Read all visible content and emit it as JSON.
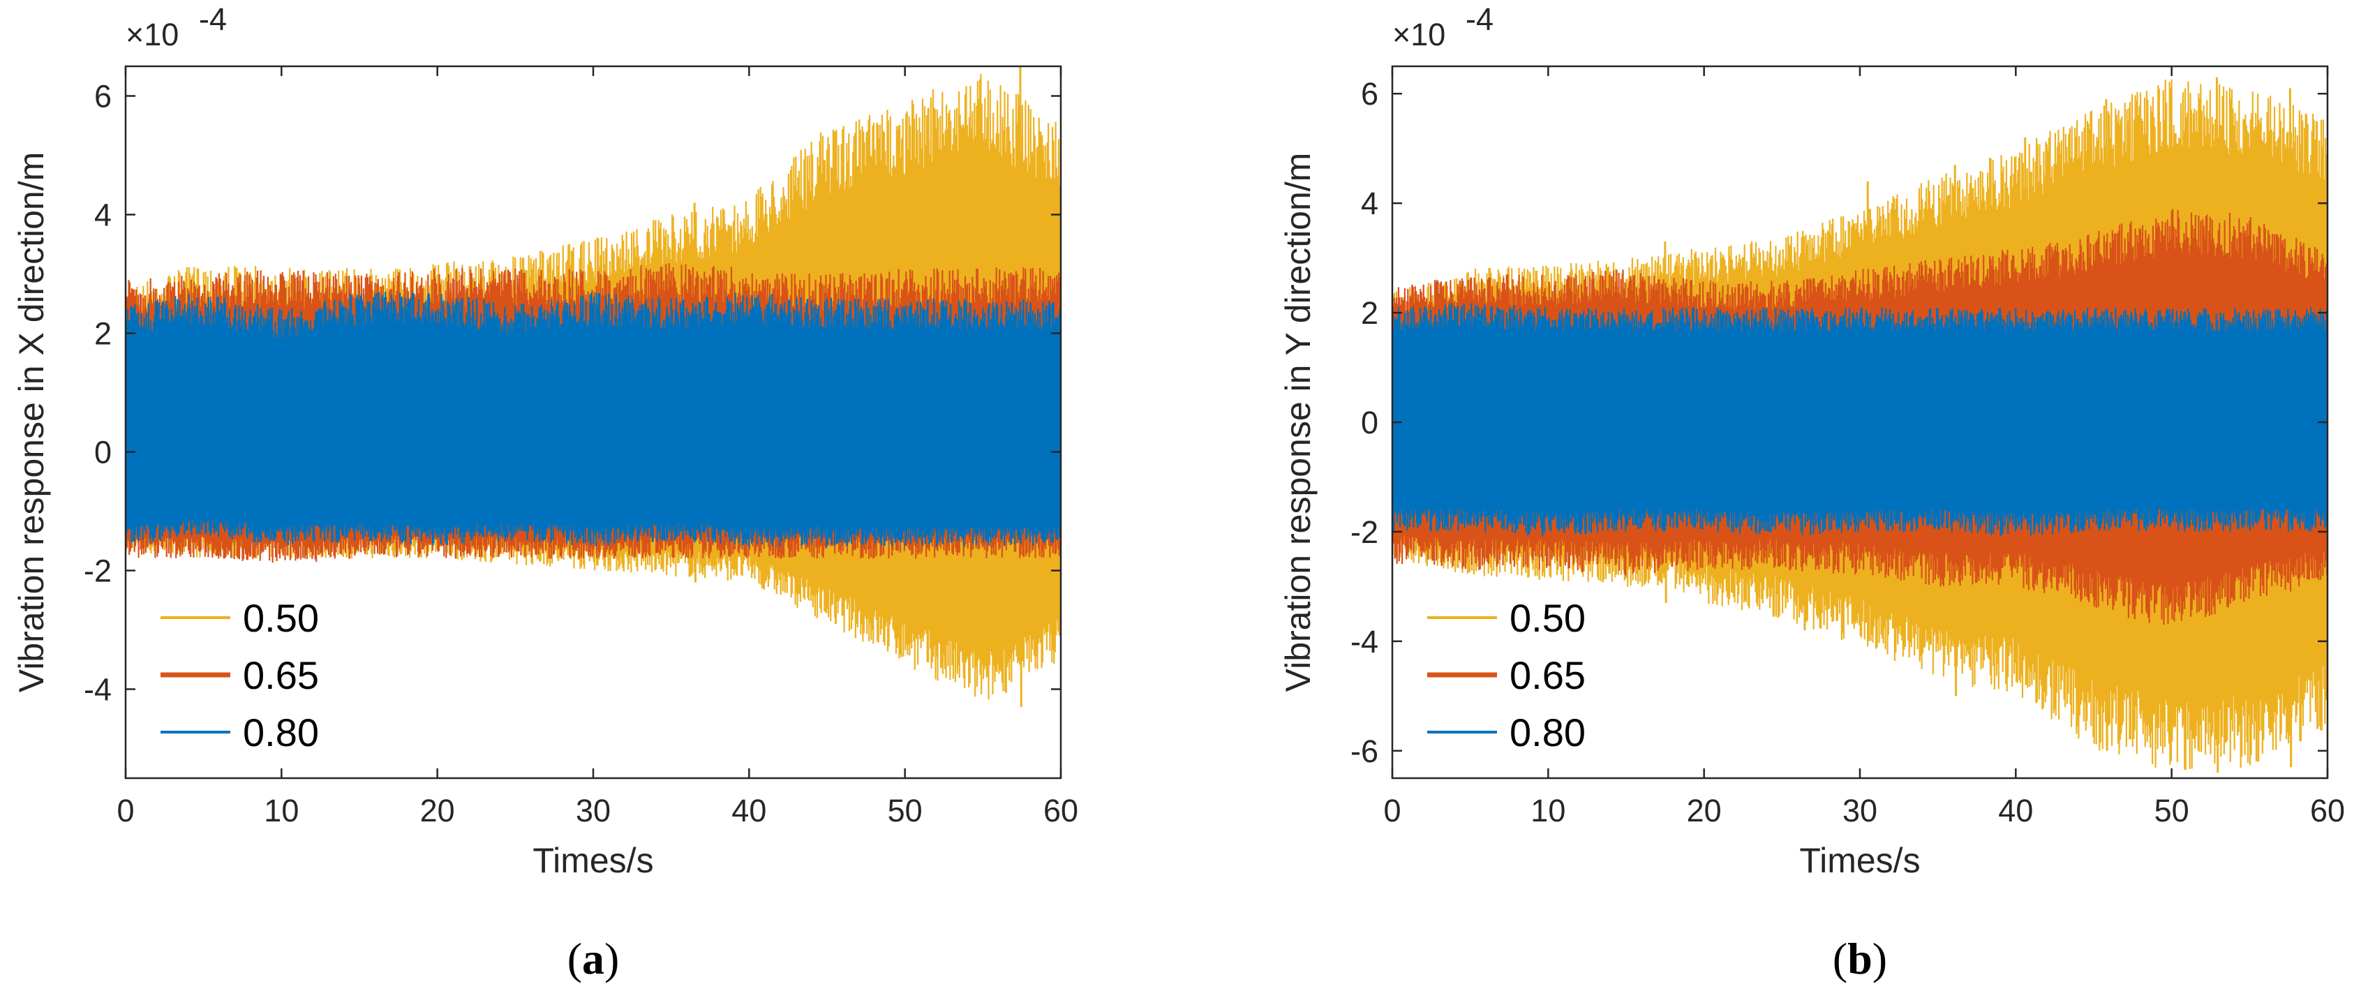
{
  "chart_data": [
    {
      "type": "line",
      "id": "a",
      "panel_label": {
        "open": "(",
        "letter": "a",
        "close": ")"
      },
      "title": "",
      "xlabel": "Times/s",
      "ylabel": "Vibration response in X direction/m",
      "exponent_label": "×10",
      "exponent_power": "-4",
      "xlim": [
        0,
        60
      ],
      "ylim": [
        -5.5,
        6.5
      ],
      "xticks": [
        0,
        10,
        20,
        30,
        40,
        50,
        60
      ],
      "xtick_labels": [
        "0",
        "10",
        "20",
        "30",
        "40",
        "50",
        "60"
      ],
      "yticks": [
        -4,
        -2,
        0,
        2,
        4,
        6
      ],
      "ytick_labels": [
        "-4",
        "-2",
        "0",
        "2",
        "4",
        "6"
      ],
      "grid": false,
      "legend_position": "bottom-left",
      "series": [
        {
          "name": "0.50",
          "color": "#EDB120",
          "envelope_t": [
            0,
            5,
            10,
            15,
            20,
            25,
            30,
            35,
            40,
            45,
            50,
            55,
            60
          ],
          "upper": [
            2.8,
            3.2,
            3.1,
            3.1,
            3.2,
            3.3,
            3.6,
            4.0,
            4.3,
            5.5,
            5.9,
            6.5,
            5.5
          ],
          "lower": [
            -1.7,
            -1.8,
            -1.8,
            -1.8,
            -1.8,
            -1.9,
            -2.0,
            -2.1,
            -2.2,
            -2.9,
            -3.6,
            -4.3,
            -3.5
          ],
          "spikes": [
            [
              36.5,
              4.2,
              -2.2
            ],
            [
              40.8,
              4.3,
              -2.3
            ],
            [
              45.5,
              5.4,
              -2.9
            ],
            [
              51.5,
              5.8,
              -3.0
            ],
            [
              53.4,
              3.9,
              -3.6
            ],
            [
              55.2,
              5.0,
              -3.8
            ],
            [
              57.4,
              6.5,
              -4.3
            ],
            [
              58.7,
              5.4,
              -3.1
            ]
          ]
        },
        {
          "name": "0.65",
          "color": "#D95319",
          "envelope_t": [
            0,
            5,
            10,
            15,
            20,
            25,
            30,
            35,
            40,
            45,
            50,
            55,
            60
          ],
          "upper": [
            2.9,
            3.0,
            3.1,
            3.0,
            3.1,
            3.1,
            3.1,
            3.2,
            3.1,
            3.0,
            3.1,
            3.1,
            3.2
          ],
          "lower": [
            -1.8,
            -1.8,
            -1.9,
            -1.8,
            -1.8,
            -1.8,
            -1.8,
            -1.8,
            -1.8,
            -1.8,
            -1.8,
            -1.8,
            -1.8
          ],
          "spikes": []
        },
        {
          "name": "0.80",
          "color": "#0072BD",
          "envelope_t": [
            0,
            5,
            10,
            15,
            20,
            25,
            30,
            35,
            40,
            45,
            50,
            55,
            60
          ],
          "upper": [
            2.5,
            2.7,
            2.4,
            2.7,
            2.7,
            2.5,
            2.7,
            2.6,
            2.7,
            2.6,
            2.6,
            2.6,
            2.6
          ],
          "lower": [
            -1.6,
            -1.4,
            -1.6,
            -1.5,
            -1.6,
            -1.5,
            -1.6,
            -1.5,
            -1.6,
            -1.6,
            -1.6,
            -1.6,
            -1.6
          ],
          "spikes": []
        }
      ]
    },
    {
      "type": "line",
      "id": "b",
      "panel_label": {
        "open": "(",
        "letter": "b",
        "close": ")"
      },
      "title": "",
      "xlabel": "Times/s",
      "ylabel": "Vibration response in Y direction/m",
      "exponent_label": "×10",
      "exponent_power": "-4",
      "xlim": [
        0,
        60
      ],
      "ylim": [
        -6.5,
        6.5
      ],
      "xticks": [
        0,
        10,
        20,
        30,
        40,
        50,
        60
      ],
      "xtick_labels": [
        "0",
        "10",
        "20",
        "30",
        "40",
        "50",
        "60"
      ],
      "yticks": [
        -6,
        -4,
        -2,
        0,
        2,
        4,
        6
      ],
      "ytick_labels": [
        "-6",
        "-4",
        "-2",
        "0",
        "2",
        "4",
        "6"
      ],
      "grid": false,
      "legend_position": "bottom-left",
      "series": [
        {
          "name": "0.50",
          "color": "#EDB120",
          "envelope_t": [
            0,
            5,
            10,
            15,
            20,
            25,
            30,
            35,
            40,
            45,
            50,
            55,
            60
          ],
          "upper": [
            2.4,
            2.8,
            2.9,
            3.0,
            3.2,
            3.4,
            3.9,
            4.5,
            5.0,
            5.8,
            6.3,
            6.1,
            5.6
          ],
          "lower": [
            -2.5,
            -2.8,
            -2.9,
            -3.0,
            -3.3,
            -3.6,
            -4.1,
            -4.7,
            -5.0,
            -6.0,
            -6.4,
            -6.3,
            -5.6
          ],
          "spikes": [
            [
              17.5,
              3.3,
              -3.3
            ],
            [
              26.4,
              3.4,
              -3.8
            ],
            [
              30.5,
              4.4,
              -4.0
            ],
            [
              36.1,
              4.7,
              -5.0
            ],
            [
              40.6,
              5.2,
              -4.8
            ],
            [
              45.8,
              5.9,
              -6.0
            ],
            [
              50.2,
              5.2,
              -4.4
            ],
            [
              52.9,
              6.3,
              -6.4
            ],
            [
              55.5,
              5.4,
              -6.2
            ],
            [
              57.6,
              6.1,
              -6.3
            ],
            [
              59.3,
              5.5,
              -5.6
            ]
          ]
        },
        {
          "name": "0.65",
          "color": "#D95319",
          "envelope_t": [
            0,
            5,
            10,
            15,
            20,
            25,
            30,
            35,
            40,
            45,
            50,
            55,
            60
          ],
          "upper": [
            2.5,
            2.7,
            2.7,
            2.8,
            2.6,
            2.6,
            2.8,
            3.0,
            3.2,
            3.5,
            3.9,
            3.8,
            3.1
          ],
          "lower": [
            -2.6,
            -2.7,
            -2.7,
            -2.8,
            -2.7,
            -2.7,
            -2.8,
            -3.0,
            -3.0,
            -3.4,
            -3.8,
            -3.3,
            -2.9
          ],
          "spikes": []
        },
        {
          "name": "0.80",
          "color": "#0072BD",
          "envelope_t": [
            0,
            5,
            10,
            15,
            20,
            25,
            30,
            35,
            40,
            45,
            50,
            55,
            60
          ],
          "upper": [
            2.1,
            2.2,
            2.1,
            2.1,
            2.1,
            2.1,
            2.1,
            2.1,
            2.1,
            2.1,
            2.1,
            2.1,
            2.1
          ],
          "lower": [
            -2.0,
            -2.0,
            -2.1,
            -2.0,
            -2.0,
            -2.1,
            -2.0,
            -2.0,
            -2.1,
            -2.0,
            -2.0,
            -2.0,
            -2.0
          ],
          "spikes": []
        }
      ]
    }
  ]
}
